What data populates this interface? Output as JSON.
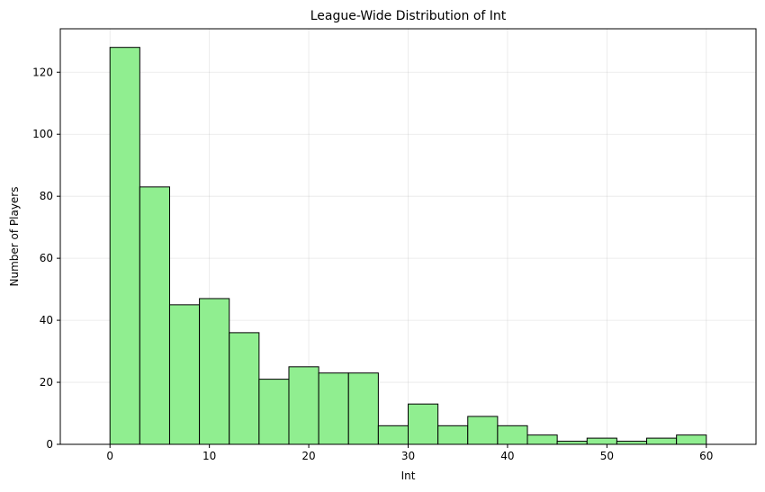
{
  "chart_data": {
    "type": "bar",
    "title": "League-Wide Distribution of Int",
    "xlabel": "Int",
    "ylabel": "Number of Players",
    "xlim": [
      -5,
      65
    ],
    "ylim": [
      0,
      134
    ],
    "grid": true,
    "x_ticks": [
      0,
      10,
      20,
      30,
      40,
      50,
      60
    ],
    "y_ticks": [
      0,
      20,
      40,
      60,
      80,
      100,
      120
    ],
    "bin_edges": [
      0,
      3,
      6,
      9,
      12,
      15,
      18,
      21,
      24,
      27,
      30,
      33,
      36,
      39,
      42,
      45,
      48,
      51,
      54,
      57,
      60
    ],
    "values": [
      128,
      83,
      45,
      47,
      36,
      21,
      25,
      23,
      23,
      6,
      13,
      6,
      9,
      6,
      3,
      1,
      2,
      1,
      2,
      3
    ],
    "bar_color": "#90ee90",
    "edge_color": "#000000"
  }
}
